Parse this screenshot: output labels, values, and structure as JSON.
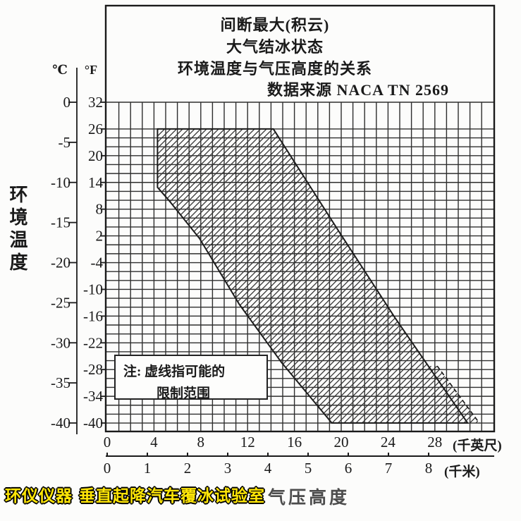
{
  "title": {
    "line1": "间断最大(积云)",
    "line2": "大气结冰状态",
    "line3": "环境温度与气压高度的关系",
    "line4": "数据来源 NACA TN 2569"
  },
  "note": {
    "line1": "注: 虚线指可能的",
    "line2": "限制范围"
  },
  "y_axis": {
    "title": "环境温度",
    "unit_celsius": "℃",
    "unit_fahrenheit": "°F"
  },
  "x_axis": {
    "title": "气压高度",
    "unit_feet": "(千英尺)",
    "unit_km": "(千米)"
  },
  "watermark": {
    "text": "环仪仪器 垂直起降汽车覆冰试验室",
    "color": "#FFE607"
  },
  "source": "NACA TN 2569",
  "chart_data": {
    "type": "area",
    "title": "间断最大(积云) 大气结冰状态 环境温度与气压高度的关系",
    "source_note": "数据来源 NACA TN 2569",
    "xlabel": "气压高度",
    "ylabel": "环境温度",
    "x_ticks_thousand_feet": [
      0,
      4,
      8,
      12,
      16,
      20,
      24,
      28
    ],
    "x_ticks_km": [
      0,
      1,
      2,
      3,
      4,
      5,
      6,
      7,
      8
    ],
    "y_ticks_celsius": [
      0,
      -5,
      -10,
      -15,
      -20,
      -25,
      -30,
      -35,
      -40
    ],
    "y_ticks_fahrenheit": [
      32,
      26,
      20,
      14,
      8,
      2,
      -4,
      -10,
      -16,
      -22,
      -28,
      -34,
      -40
    ],
    "x_range_thousand_feet": [
      0,
      33
    ],
    "y_range_celsius": [
      0,
      -40
    ],
    "grid": {
      "x_minor_step_kft": 1,
      "y_minor_step_F": 2,
      "top_band": "32F-26F undivided"
    },
    "envelope": {
      "fill": "diagonal-hatch",
      "solid_boundary_kft_F": [
        [
          4.3,
          26
        ],
        [
          14.2,
          26
        ],
        [
          19.8,
          3
        ],
        [
          24.6,
          -16.4
        ],
        [
          30.8,
          -40
        ],
        [
          19.2,
          -40
        ],
        [
          14.9,
          -26.4
        ],
        [
          11.3,
          -13.4
        ],
        [
          7.9,
          1.4
        ],
        [
          5.3,
          9.9
        ],
        [
          4.3,
          12.9
        ]
      ],
      "dashed_boundary_kft_F": [
        [
          28.2,
          -27.2
        ],
        [
          31.8,
          -40
        ]
      ],
      "dashed_meaning": "注: 虚线指可能的限制范围"
    }
  }
}
